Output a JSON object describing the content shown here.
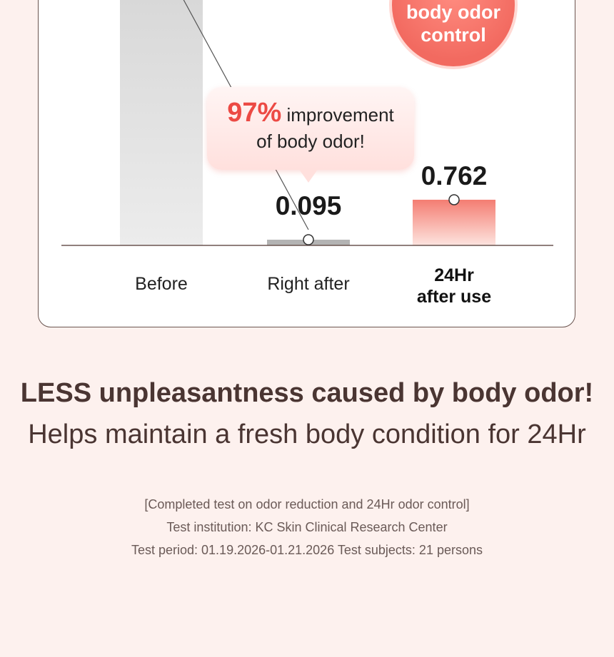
{
  "badge": {
    "line1": "body odor",
    "line2": "control"
  },
  "callout": {
    "percent": "97%",
    "line1_rest": "improvement",
    "line2": "of body odor!"
  },
  "chart_data": {
    "type": "bar",
    "categories": [
      "Before",
      "Right after",
      "24Hr after use"
    ],
    "values": [
      null,
      0.095,
      0.762
    ],
    "value_labels": [
      "",
      "0.095",
      "0.762"
    ],
    "colors": [
      "#dcdcdc",
      "#b3b3b3",
      "#f47d72"
    ]
  },
  "labels": {
    "before": "Before",
    "right_after": "Right after",
    "after_use_line1": "24Hr",
    "after_use_line2": "after use"
  },
  "headline": "LESS unpleasantness caused by body odor!",
  "subline": "Helps maintain a fresh body condition for 24Hr",
  "notes": [
    "[Completed test on odor reduction and 24Hr odor control]",
    "Test institution: KC Skin Clinical Research Center",
    "Test period: 01.19.2026-01.21.2026  Test subjects: 21 persons"
  ]
}
